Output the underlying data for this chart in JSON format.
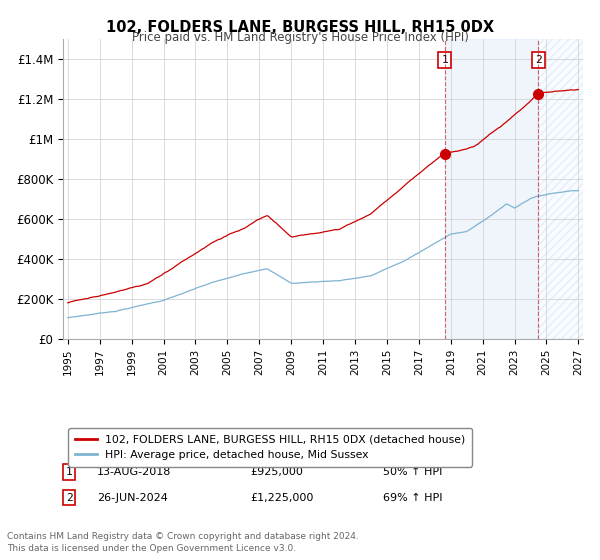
{
  "title": "102, FOLDERS LANE, BURGESS HILL, RH15 0DX",
  "subtitle": "Price paid vs. HM Land Registry's House Price Index (HPI)",
  "legend_line1": "102, FOLDERS LANE, BURGESS HILL, RH15 0DX (detached house)",
  "legend_line2": "HPI: Average price, detached house, Mid Sussex",
  "annotation1_label": "1",
  "annotation1_date": "13-AUG-2018",
  "annotation1_price": "£925,000",
  "annotation1_hpi": "50% ↑ HPI",
  "annotation2_label": "2",
  "annotation2_date": "26-JUN-2024",
  "annotation2_price": "£1,225,000",
  "annotation2_hpi": "69% ↑ HPI",
  "footnote": "Contains HM Land Registry data © Crown copyright and database right 2024.\nThis data is licensed under the Open Government Licence v3.0.",
  "sale1_year": 2018.62,
  "sale1_value": 925000,
  "sale2_year": 2024.48,
  "sale2_value": 1225000,
  "price_line_color": "#cc0000",
  "hpi_line_color": "#7fb3d3",
  "annotation_box_color": "#cc0000",
  "shaded_region_color": "#ddeeff",
  "ylim_max": 1500000,
  "ylim_min": 0,
  "xmin": 1995,
  "xmax": 2027
}
